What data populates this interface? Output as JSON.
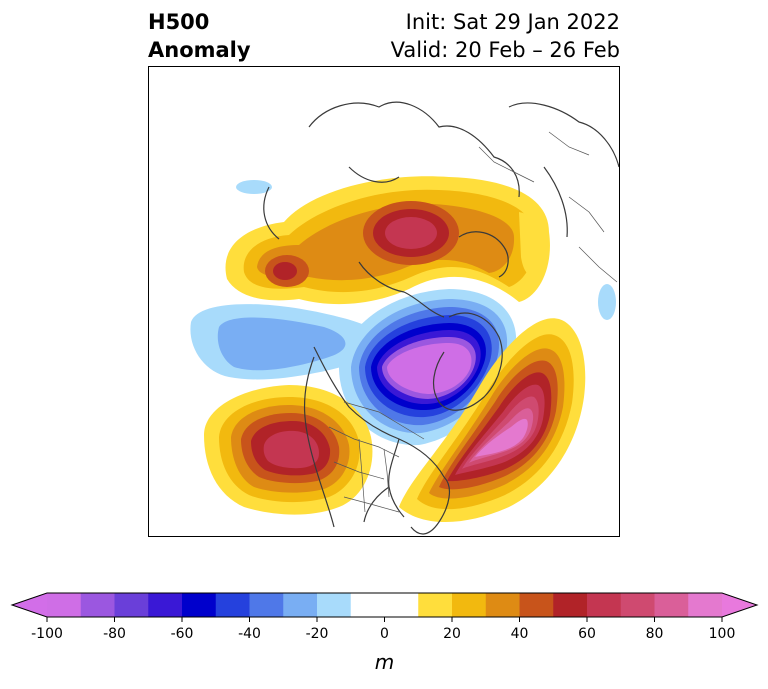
{
  "title": {
    "left_line1": "H500",
    "left_line2": "Anomaly",
    "right_line1": "Init: Sat 29 Jan 2022",
    "right_line2": "Valid: 20 Feb – 26 Feb"
  },
  "colorbar": {
    "unit": "m",
    "ticks": [
      "-100",
      "-80",
      "-60",
      "-40",
      "-20",
      "0",
      "20",
      "40",
      "60",
      "80",
      "100"
    ],
    "levels": [
      -100,
      -90,
      -80,
      -70,
      -60,
      -50,
      -40,
      -30,
      -20,
      -10,
      10,
      20,
      30,
      40,
      50,
      60,
      70,
      80,
      90,
      100
    ],
    "colors": [
      "#cf6ee6",
      "#9b57e0",
      "#6a3fd9",
      "#3a18d6",
      "#0000cc",
      "#2541dd",
      "#4f78e8",
      "#79aef3",
      "#a8dbfb",
      "#ffffff",
      "#ffde3c",
      "#f2b90f",
      "#de8b14",
      "#c8541b",
      "#b12328",
      "#c43651",
      "#cf4a70",
      "#da5f99",
      "#e479cf"
    ],
    "under_color": "#d26ee8",
    "over_color": "#e879dd"
  }
}
